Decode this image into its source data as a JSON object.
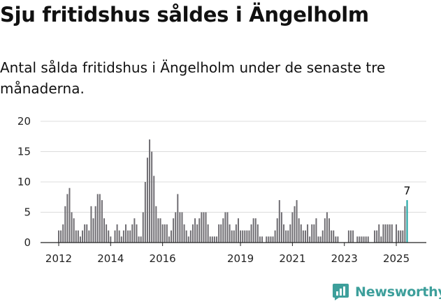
{
  "title": "Sju fritidshus såldes i Ängelholm",
  "subtitle": "Antal sålda fritidshus i Ängelholm under de senaste tre månaderna.",
  "brand": {
    "name": "Newsworthy",
    "icon": "newsworthy-chart-icon",
    "color": "#3d9f9b"
  },
  "colors": {
    "bar": "#6f6d72",
    "highlight": "#17a2a0",
    "grid": "#dcdcdc",
    "axis": "#222222"
  },
  "chart_data": {
    "type": "bar",
    "ylim": [
      0,
      20
    ],
    "yticks": [
      0,
      5,
      10,
      15,
      20
    ],
    "xticks": [
      "2012",
      "2014",
      "2016",
      "2019",
      "2021",
      "2023",
      "2025"
    ],
    "xtick_positions": [
      2012,
      2014,
      2016,
      2019,
      2021,
      2023,
      2025
    ],
    "x_start": 2012,
    "x_step": 0.08333,
    "grid": true,
    "highlight_label": "7",
    "values": [
      2,
      2,
      3,
      6,
      8,
      9,
      5,
      4,
      2,
      2,
      1,
      2,
      3,
      3,
      2,
      6,
      4,
      6,
      8,
      8,
      7,
      4,
      3,
      2,
      1,
      0,
      2,
      3,
      2,
      1,
      2,
      3,
      2,
      2,
      3,
      4,
      3,
      1,
      1,
      5,
      10,
      14,
      17,
      15,
      11,
      6,
      4,
      4,
      3,
      3,
      3,
      1,
      2,
      4,
      5,
      8,
      5,
      5,
      3,
      2,
      1,
      2,
      3,
      4,
      3,
      4,
      5,
      5,
      5,
      3,
      1,
      1,
      1,
      1,
      3,
      3,
      4,
      5,
      5,
      3,
      2,
      2,
      3,
      4,
      2,
      2,
      2,
      2,
      2,
      3,
      4,
      4,
      3,
      1,
      1,
      0,
      1,
      1,
      1,
      1,
      2,
      4,
      7,
      5,
      3,
      2,
      2,
      3,
      5,
      6,
      7,
      4,
      3,
      2,
      2,
      3,
      1,
      3,
      3,
      4,
      1,
      1,
      2,
      4,
      5,
      4,
      2,
      2,
      1,
      1,
      0,
      0,
      0,
      0,
      2,
      2,
      2,
      0,
      1,
      1,
      1,
      1,
      1,
      1,
      0,
      0,
      2,
      2,
      3,
      1,
      3,
      3,
      3,
      3,
      3,
      0,
      3,
      2,
      2,
      2,
      6,
      7
    ]
  }
}
